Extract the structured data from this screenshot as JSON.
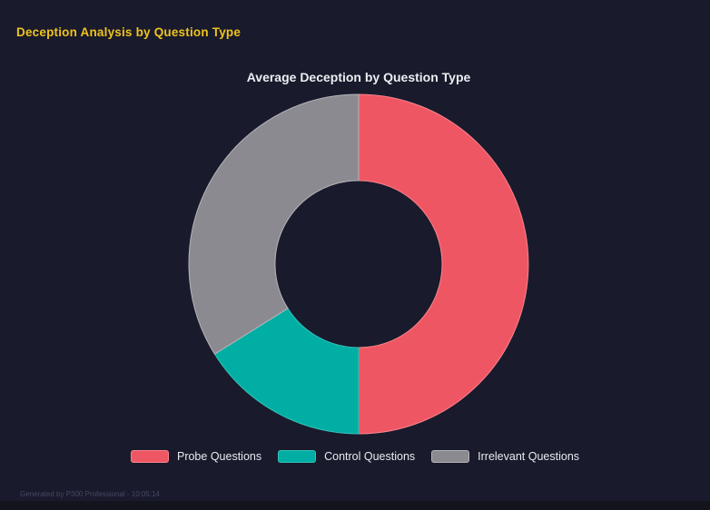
{
  "page": {
    "title": "Deception Analysis by Question Type",
    "footer": "Generated by P300 Professional - 10:05:14"
  },
  "chart_data": {
    "type": "pie",
    "subtype": "doughnut",
    "title": "Average Deception by Question Type",
    "series": [
      {
        "name": "Probe Questions",
        "percent": 50.0,
        "color": "#ef5663",
        "border_color": "#f8838c"
      },
      {
        "name": "Control Questions",
        "percent": 16.1,
        "color": "#00aea4",
        "border_color": "#35c1b8"
      },
      {
        "name": "Irrelevant Questions",
        "percent": 33.9,
        "color": "#8a8a90",
        "border_color": "#b4b4ba"
      }
    ],
    "start_angle_deg": 0,
    "direction": "clockwise",
    "cutout_percent": 50,
    "legend_position": "bottom"
  },
  "colors": {
    "background": "#191a2b",
    "footer_bar": "#13141e",
    "heading_text": "#efc31e",
    "chart_title_text": "#eceef4",
    "legend_text": "#e9ebf2",
    "footer_text": "#454a63"
  }
}
